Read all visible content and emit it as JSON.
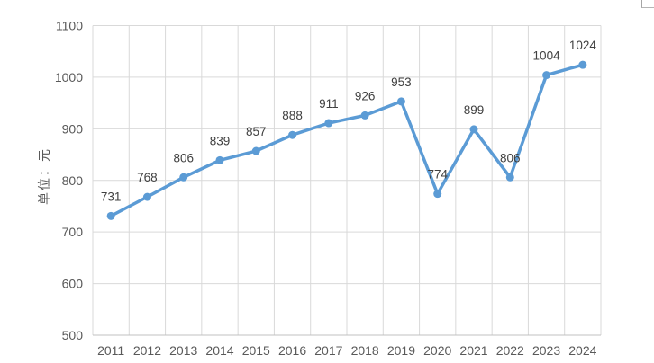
{
  "chart_data": {
    "type": "line",
    "title": "",
    "categories": [
      "2011",
      "2012",
      "2013",
      "2014",
      "2015",
      "2016",
      "2017",
      "2018",
      "2019",
      "2020",
      "2021",
      "2022",
      "2023",
      "2024"
    ],
    "series": [
      {
        "name": "",
        "values": [
          731,
          768,
          806,
          839,
          857,
          888,
          911,
          926,
          953,
          774,
          899,
          806,
          1004,
          1024
        ]
      }
    ],
    "xlabel": "",
    "ylabel": "单位：元",
    "ylim": [
      500,
      1100
    ],
    "yticks": [
      500,
      600,
      700,
      800,
      900,
      1000,
      1100
    ],
    "grid": true,
    "legend": false,
    "data_labels": true,
    "colors": {
      "line": "#5B9BD5",
      "marker": "#5B9BD5",
      "data_label": "#404040",
      "tick_label": "#595959",
      "gridline": "#D9D9D9",
      "axis_line": "#C0C0C0"
    }
  }
}
